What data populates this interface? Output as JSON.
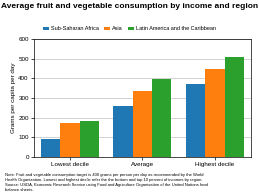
{
  "chart_data": {
    "type": "bar",
    "title": "Average fruit and vegetable consumption by income and region",
    "y_label": "Grams per capita per day",
    "categories": [
      "Lowest decile",
      "Average",
      "Highest decile"
    ],
    "series": [
      {
        "name": "Sub-Saharan Africa",
        "values": [
          90,
          260,
          370
        ]
      },
      {
        "name": "Asia",
        "values": [
          175,
          335,
          445
        ]
      },
      {
        "name": "Latin America and the Caribbean",
        "values": [
          185,
          395,
          510
        ]
      }
    ],
    "ylim": [
      0,
      600
    ],
    "yticks": [
      0,
      100,
      200,
      300,
      400,
      500,
      600
    ],
    "grid": true,
    "legend": "upper center",
    "annotations": [
      "Note: Fruit and vegetable consumption target is 400 grams per person per day as recommended by the World\nHealth Organization. Lowest and highest decile refer the the bottom and top 10 percent of incomes by region.\nSource: USDA, Economic Research Service using Food and Agriculture Organisation of the United Nations food\nbalance sheets."
    ]
  }
}
